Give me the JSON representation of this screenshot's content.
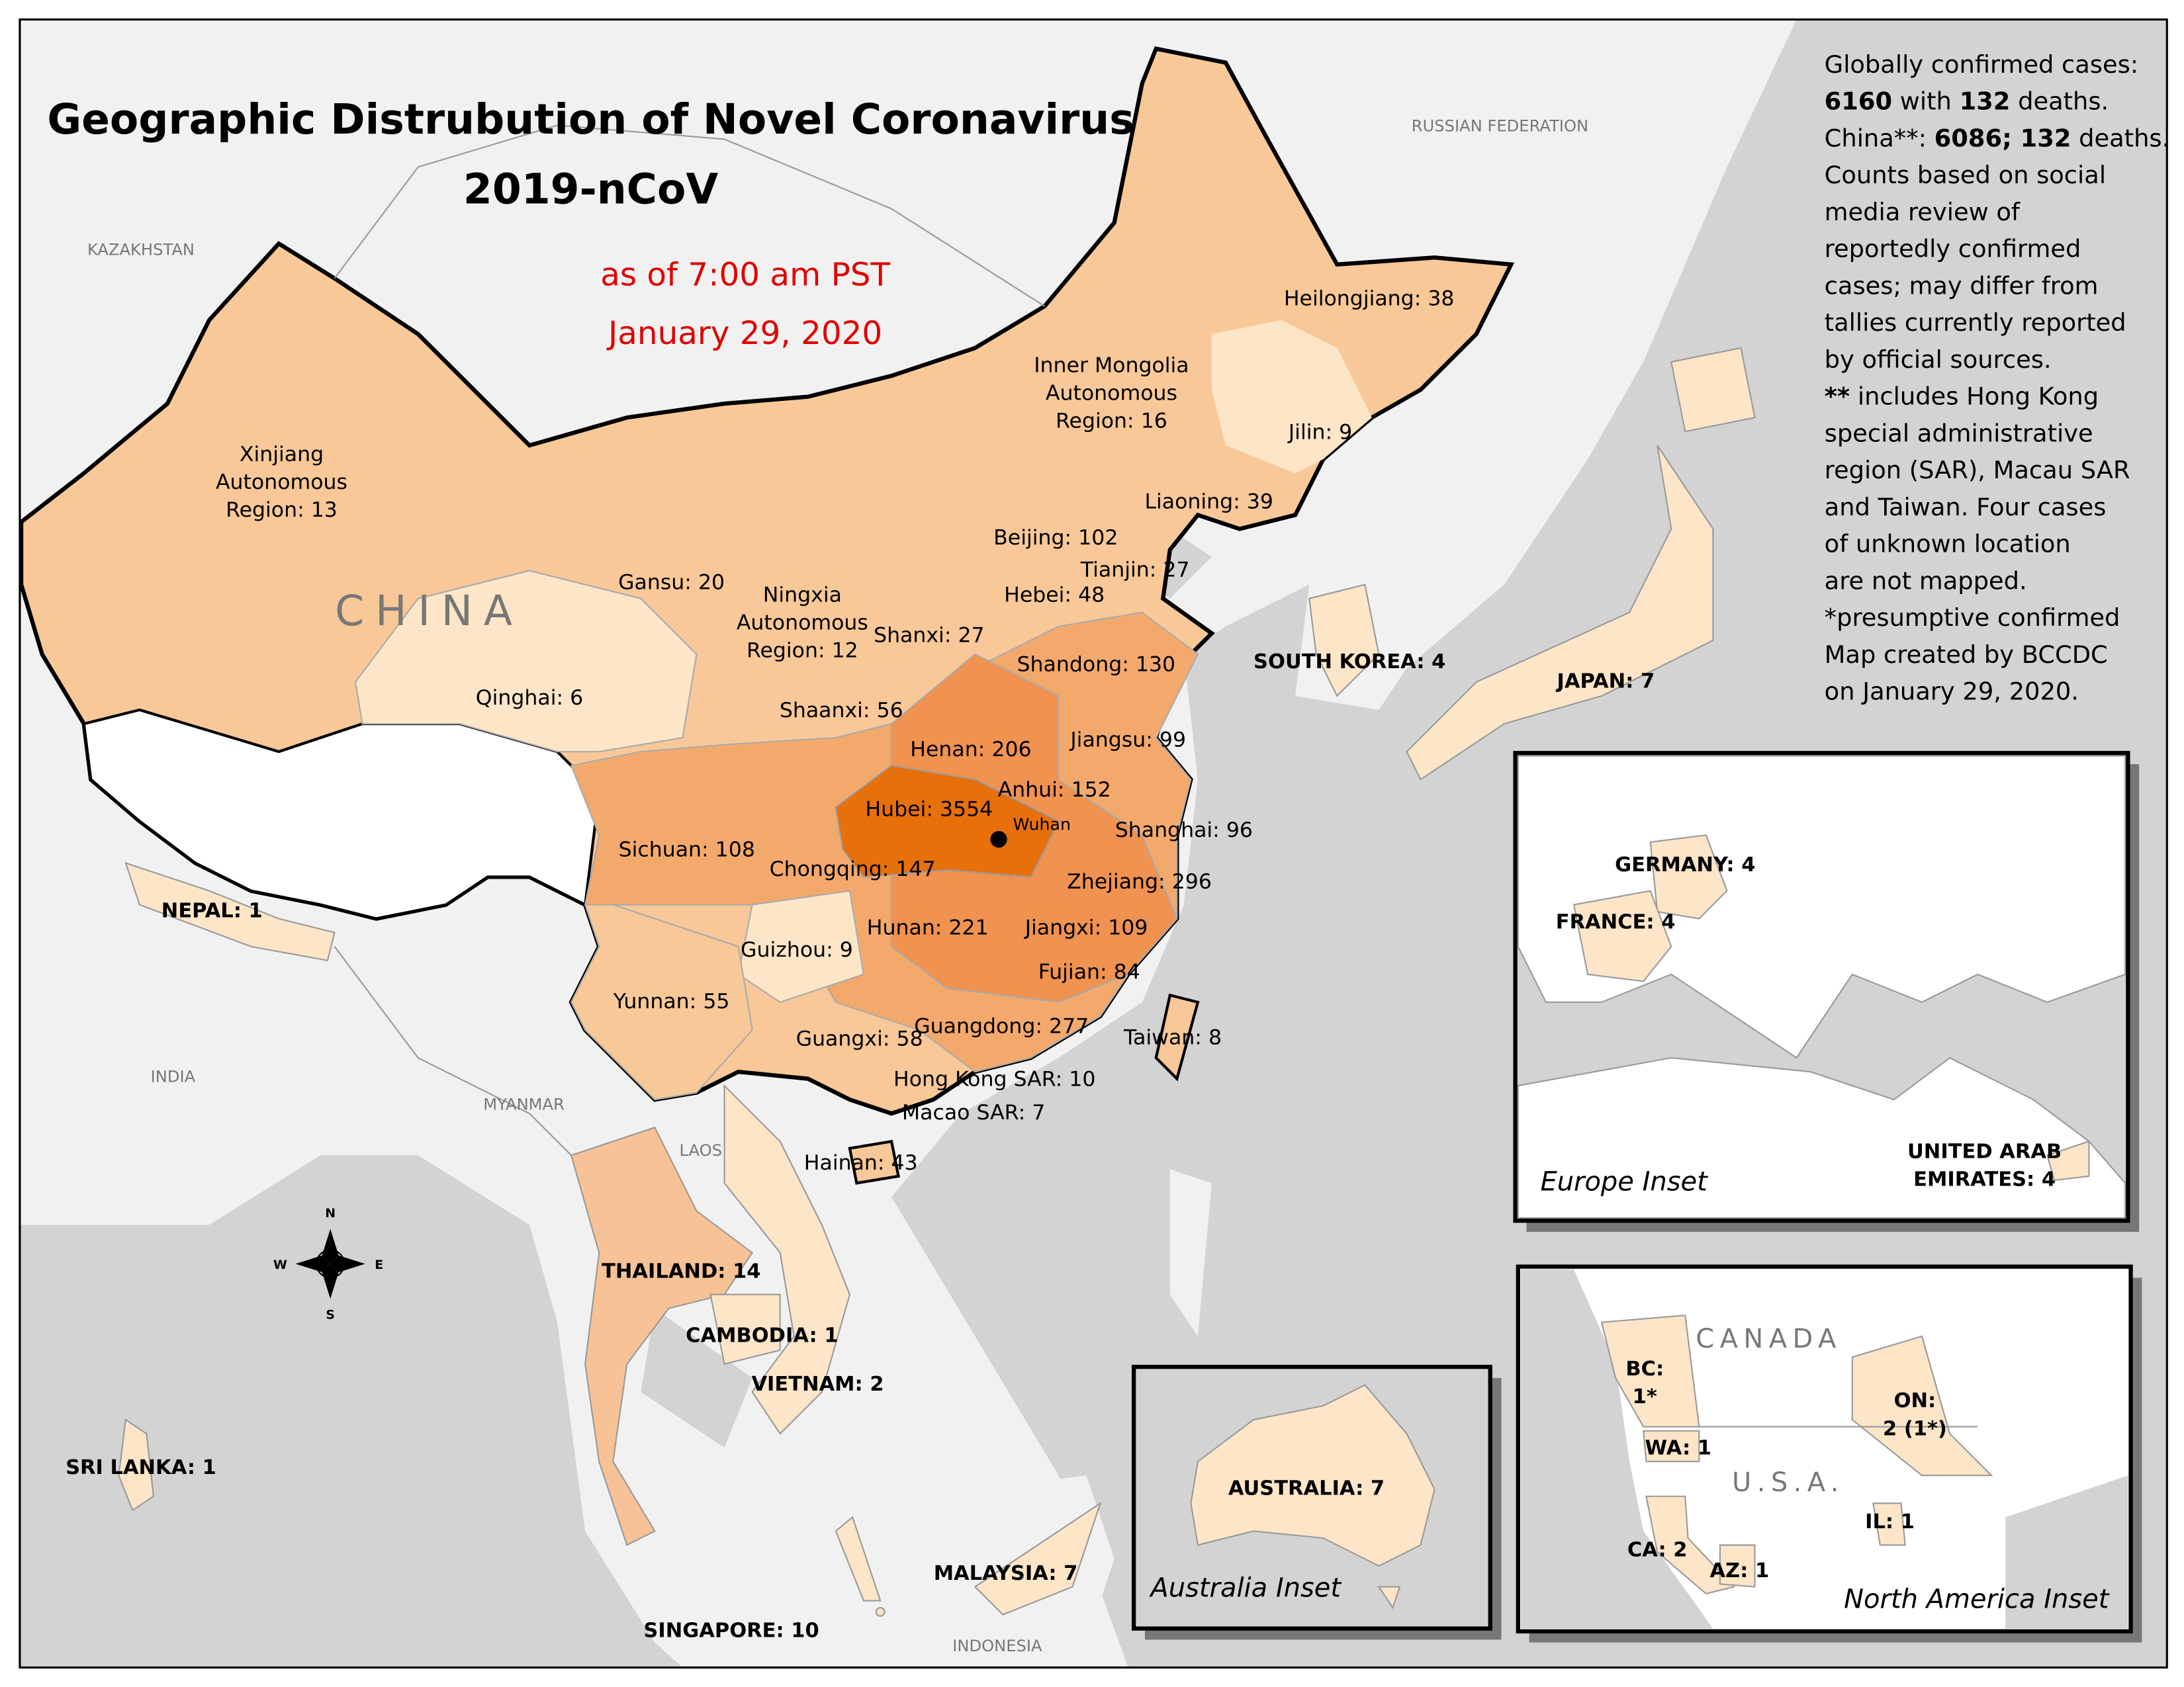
{
  "title": [
    "Geographic Distrubution of Novel Coronavirus",
    "2019-nCoV"
  ],
  "subtitle": [
    "as of 7:00 am PST",
    "January 29, 2020"
  ],
  "notes": [
    [
      "Globally confirmed cases:"
    ],
    [
      "6160",
      " with ",
      "132",
      " deaths."
    ],
    [
      "China**: ",
      "6086; 132",
      " deaths."
    ],
    [
      "Counts based on social"
    ],
    [
      "media review of"
    ],
    [
      "reportedly confirmed"
    ],
    [
      "cases; may differ from"
    ],
    [
      "tallies currently reported"
    ],
    [
      "by official sources."
    ],
    [
      "**",
      " includes Hong Kong"
    ],
    [
      "special administrative"
    ],
    [
      "region (SAR), Macau SAR"
    ],
    [
      "and Taiwan. Four cases"
    ],
    [
      "of unknown location"
    ],
    [
      "are not mapped."
    ],
    [
      "*presumptive confirmed"
    ],
    [
      "Map created by BCCDC"
    ],
    [
      "on January 29, 2020."
    ]
  ],
  "province_labels": [
    [
      "Heilongjiang: 38"
    ],
    [
      "Inner Mongolia",
      "Autonomous",
      "Region: 16"
    ],
    [
      "Jilin: 9"
    ],
    [
      "Liaoning: 39"
    ],
    [
      "Beijing: 102"
    ],
    [
      "Tianjin: 27"
    ],
    [
      "Hebei: 48"
    ],
    [
      "Xinjiang",
      "Autonomous",
      "Region: 13"
    ],
    [
      "Gansu: 20"
    ],
    [
      "Ningxia",
      "Autonomous",
      "Region: 12"
    ],
    [
      "Shanxi: 27"
    ],
    [
      "Shandong: 130"
    ],
    [
      "Qinghai: 6"
    ],
    [
      "Shaanxi: 56"
    ],
    [
      "Henan: 206"
    ],
    [
      "Jiangsu: 99"
    ],
    [
      "Anhui: 152"
    ],
    [
      "Hubei: 3554"
    ],
    [
      "Shanghai: 96"
    ],
    [
      "Sichuan: 108"
    ],
    [
      "Chongqing: 147"
    ],
    [
      "Zhejiang: 296"
    ],
    [
      "Hunan: 221"
    ],
    [
      "Jiangxi: 109"
    ],
    [
      "Guizhou: 9"
    ],
    [
      "Fujian: 84"
    ],
    [
      "Yunnan: 55"
    ],
    [
      "Guangxi: 58"
    ],
    [
      "Guangdong: 277"
    ],
    [
      "Taiwan: 8"
    ],
    [
      "Hong Kong SAR: 10"
    ],
    [
      "Macao SAR: 7"
    ],
    [
      "Hainan: 43"
    ]
  ],
  "country_labels": [
    [
      "NEPAL: 1"
    ],
    [
      "SOUTH KOREA: 4"
    ],
    [
      "JAPAN: 7"
    ],
    [
      "THAILAND: 14"
    ],
    [
      "CAMBODIA: 1"
    ],
    [
      "VIETNAM: 2"
    ],
    [
      "SRI LANKA: 1"
    ],
    [
      "MALAYSIA: 7"
    ],
    [
      "SINGAPORE: 10"
    ],
    [
      "AUSTRALIA: 7"
    ],
    [
      "GERMANY: 4"
    ],
    [
      "FRANCE: 4"
    ],
    [
      "UNITED ARAB",
      "EMIRATES: 4"
    ],
    [
      "BC:",
      "1*"
    ],
    [
      "ON:",
      "2 (1*)"
    ],
    [
      "WA: 1"
    ],
    [
      "IL: 1"
    ],
    [
      "CA: 2"
    ],
    [
      "AZ: 1"
    ]
  ],
  "place_names": [
    "KAZAKHSTAN",
    "RUSSIAN FEDERATION",
    "INDIA",
    "MYANMAR",
    "LAOS",
    "INDONESIA",
    "CHINA",
    "CANADA",
    "U.S.A."
  ],
  "city": "Wuhan",
  "insets": [
    "Europe Inset",
    "Australia Inset",
    "North America Inset"
  ],
  "compass": [
    "N",
    "E",
    "S",
    "W"
  ]
}
